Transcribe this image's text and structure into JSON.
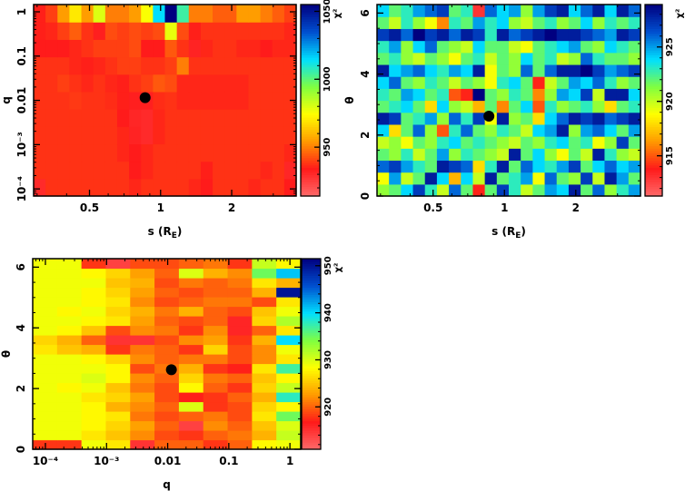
{
  "colormap": [
    "#ff6a6a",
    "#ff1a1a",
    "#ff9900",
    "#ffff00",
    "#80ff40",
    "#00e0ff",
    "#0050d0",
    "#000080"
  ],
  "marker_color": "#000000",
  "chart_data": [
    {
      "type": "heatmap",
      "xlabel": {
        "text": "s (R",
        "sub": "E",
        "suffix": ")"
      },
      "ylabel": {
        "text": "q"
      },
      "xscale": "log",
      "yscale": "log",
      "xlim": [
        0.29,
        3.75
      ],
      "ylim": [
        6.9e-05,
        1.46
      ],
      "xticks": [
        {
          "value": 0.5,
          "label": "0.5"
        },
        {
          "value": 1,
          "label": "1"
        },
        {
          "value": 2,
          "label": "2"
        }
      ],
      "yticks": [
        {
          "value": 0.0001,
          "label": "10⁻⁴"
        },
        {
          "value": 0.001,
          "label": "10⁻³"
        },
        {
          "value": 0.01,
          "label": "0.01"
        },
        {
          "value": 0.1,
          "label": "0.1"
        },
        {
          "value": 1,
          "label": "1"
        }
      ],
      "colorbar": {
        "label": "χ²",
        "range": [
          914,
          1055
        ],
        "ticks": [
          {
            "value": 950,
            "label": "950"
          },
          {
            "value": 1000,
            "label": "1000"
          },
          {
            "value": 1050,
            "label": "1050"
          }
        ]
      },
      "best_fit": {
        "s": 0.86,
        "q": 0.0115
      },
      "values_bottom_to_top": [
        [
          930,
          938,
          938,
          938,
          938,
          938,
          938,
          938,
          936,
          938,
          938,
          938,
          938,
          936,
          934,
          938,
          938,
          938,
          936,
          938,
          938,
          934
        ],
        [
          938,
          938,
          938,
          938,
          938,
          938,
          938,
          938,
          934,
          936,
          938,
          938,
          938,
          938,
          935,
          938,
          938,
          938,
          938,
          936,
          938,
          931
        ],
        [
          938,
          938,
          938,
          938,
          938,
          938,
          938,
          936,
          934,
          936,
          938,
          938,
          938,
          938,
          938,
          938,
          938,
          938,
          938,
          938,
          938,
          936
        ],
        [
          938,
          938,
          938,
          938,
          938,
          938,
          938,
          936,
          932,
          930,
          936,
          938,
          938,
          938,
          938,
          938,
          938,
          938,
          938,
          938,
          938,
          938
        ],
        [
          938,
          938,
          938,
          938,
          938,
          938,
          938,
          934,
          931,
          930,
          936,
          938,
          938,
          938,
          938,
          938,
          938,
          938,
          938,
          938,
          938,
          938
        ],
        [
          938,
          938,
          938,
          939,
          938,
          938,
          937,
          935,
          933,
          933,
          937,
          938,
          936,
          936,
          936,
          936,
          936,
          936,
          938,
          938,
          938,
          938
        ],
        [
          938,
          938,
          940,
          938,
          936,
          938,
          936,
          935,
          938,
          940,
          944,
          942,
          936,
          936,
          936,
          936,
          936,
          936,
          938,
          938,
          938,
          938
        ],
        [
          938,
          938,
          938,
          936,
          935,
          936,
          938,
          940,
          940,
          938,
          938,
          940,
          950,
          938,
          938,
          938,
          938,
          938,
          938,
          938,
          938,
          938
        ],
        [
          934,
          934,
          934,
          936,
          938,
          940,
          940,
          940,
          942,
          934,
          934,
          944,
          938,
          932,
          936,
          938,
          938,
          936,
          936,
          934,
          936,
          936
        ],
        [
          935,
          936,
          940,
          945,
          938,
          933,
          942,
          940,
          942,
          940,
          942,
          978,
          942,
          935,
          938,
          938,
          938,
          938,
          938,
          938,
          938,
          936
        ],
        [
          935,
          940,
          955,
          970,
          955,
          980,
          950,
          950,
          955,
          975,
          1015,
          1055,
          1005,
          950,
          950,
          945,
          945,
          955,
          955,
          950,
          945,
          940
        ]
      ]
    },
    {
      "type": "heatmap",
      "xlabel": {
        "text": "s (R",
        "sub": "E",
        "suffix": ")"
      },
      "ylabel": {
        "text": "θ"
      },
      "xscale": "log",
      "yscale": "linear",
      "xlim": [
        0.29,
        3.75
      ],
      "ylim": [
        0,
        6.28
      ],
      "xticks": [
        {
          "value": 0.5,
          "label": "0.5"
        },
        {
          "value": 1,
          "label": "1"
        },
        {
          "value": 2,
          "label": "2"
        }
      ],
      "yticks": [
        {
          "value": 0,
          "label": "0"
        },
        {
          "value": 2,
          "label": "2"
        },
        {
          "value": 4,
          "label": "4"
        },
        {
          "value": 6,
          "label": "6"
        }
      ],
      "colorbar": {
        "label": "χ²",
        "range": [
          911.3,
          928.9
        ],
        "ticks": [
          {
            "value": 915,
            "label": "915"
          },
          {
            "value": 920,
            "label": "920"
          },
          {
            "value": 925,
            "label": "925"
          }
        ]
      },
      "best_fit": {
        "s": 0.86,
        "theta": 2.62
      },
      "values_bottom_to_top": [
        [
          921,
          922,
          924,
          927,
          923,
          920,
          926,
          922,
          914,
          922,
          927,
          923,
          920,
          922,
          925,
          924,
          928,
          922,
          926,
          921,
          923,
          925
        ],
        [
          919,
          925,
          920,
          922,
          928,
          924,
          917,
          924,
          920,
          928,
          922,
          923,
          925,
          919,
          926,
          922,
          921,
          927,
          920,
          928,
          925,
          922
        ],
        [
          926,
          927,
          925,
          923,
          922,
          928,
          927,
          926,
          918,
          923,
          928,
          922,
          926,
          924,
          923,
          925,
          927,
          922,
          924,
          926,
          924,
          925
        ],
        [
          922,
          921,
          923,
          920,
          922,
          925,
          921,
          923,
          922,
          921,
          920,
          928,
          922,
          924,
          921,
          919,
          922,
          920,
          928,
          923,
          921,
          920
        ],
        [
          920,
          921,
          919,
          922,
          921,
          923,
          924,
          922,
          923,
          922,
          921,
          920,
          922,
          921,
          923,
          924,
          922,
          923,
          919,
          921,
          927,
          922
        ],
        [
          924,
          918,
          922,
          926,
          921,
          915,
          923,
          926,
          922,
          921,
          923,
          922,
          920,
          924,
          925,
          928,
          921,
          925,
          926,
          924,
          922,
          925
        ],
        [
          928,
          927,
          922,
          923,
          925,
          921,
          926,
          923,
          927,
          919,
          928,
          921,
          922,
          918,
          924,
          926,
          928,
          927,
          928,
          926,
          927,
          928
        ],
        [
          922,
          923,
          924,
          922,
          918,
          924,
          921,
          920,
          917,
          922,
          916,
          922,
          924,
          915,
          923,
          921,
          922,
          923,
          921,
          918,
          922,
          923
        ],
        [
          923,
          922,
          925,
          924,
          922,
          923,
          915,
          914,
          929,
          922,
          921,
          923,
          922,
          916,
          921,
          925,
          924,
          927,
          920,
          928,
          928,
          924
        ],
        [
          924,
          926,
          922,
          921,
          923,
          922,
          920,
          922,
          921,
          919,
          923,
          924,
          922,
          914,
          920,
          922,
          925,
          924,
          926,
          923,
          921,
          922
        ],
        [
          928,
          924,
          925,
          926,
          924,
          923,
          925,
          924,
          928,
          919,
          922,
          921,
          926,
          922,
          926,
          928,
          928,
          929,
          927,
          925,
          926,
          927
        ],
        [
          922,
          923,
          921,
          920,
          922,
          921,
          919,
          922,
          923,
          920,
          922,
          921,
          924,
          922,
          923,
          920,
          921,
          926,
          923,
          922,
          922,
          921
        ],
        [
          923,
          925,
          921,
          924,
          926,
          922,
          921,
          920,
          924,
          922,
          922,
          920,
          919,
          922,
          923,
          924,
          925,
          922,
          921,
          924,
          923,
          922
        ],
        [
          927,
          928,
          926,
          929,
          927,
          928,
          926,
          928,
          927,
          923,
          928,
          926,
          927,
          928,
          929,
          928,
          928,
          927,
          926,
          925,
          928,
          927
        ],
        [
          922,
          920,
          923,
          921,
          919,
          916,
          923,
          922,
          925,
          923,
          924,
          921,
          920,
          922,
          923,
          921,
          922,
          924,
          921,
          923,
          922,
          923
        ],
        [
          924,
          922,
          923,
          925,
          926,
          927,
          922,
          923,
          913,
          926,
          924,
          925,
          921,
          925,
          927,
          928,
          924,
          926,
          928,
          924,
          928,
          926
        ]
      ]
    },
    {
      "type": "heatmap",
      "xlabel": {
        "text": "q",
        "sub": "",
        "suffix": ""
      },
      "ylabel": {
        "text": "θ"
      },
      "xscale": "log",
      "yscale": "linear",
      "xlim": [
        6.2e-05,
        1.5
      ],
      "ylim": [
        0,
        6.28
      ],
      "xticks": [
        {
          "value": 0.0001,
          "label": "10⁻⁴"
        },
        {
          "value": 0.001,
          "label": "10⁻³"
        },
        {
          "value": 0.01,
          "label": "0.01"
        },
        {
          "value": 0.1,
          "label": "0.1"
        },
        {
          "value": 1,
          "label": "1"
        }
      ],
      "yticks": [
        {
          "value": 0,
          "label": "0"
        },
        {
          "value": 2,
          "label": "2"
        },
        {
          "value": 4,
          "label": "4"
        },
        {
          "value": 6,
          "label": "6"
        }
      ],
      "colorbar": {
        "label": "χ²",
        "range": [
          911,
          951.5
        ],
        "ticks": [
          {
            "value": 920,
            "label": "920"
          },
          {
            "value": 930,
            "label": "930"
          },
          {
            "value": 940,
            "label": "940"
          },
          {
            "value": 950,
            "label": "950"
          }
        ]
      },
      "best_fit": {
        "q": 0.0115,
        "theta": 2.62
      },
      "values_bottom_to_top": [
        [
          918,
          918,
          929,
          927,
          915,
          920,
          920,
          918,
          920,
          928,
          929
        ],
        [
          929,
          929,
          927,
          925,
          922,
          919,
          918,
          920,
          921,
          924,
          931
        ],
        [
          929,
          929,
          928,
          926,
          923,
          920,
          914,
          922,
          920,
          925,
          930
        ],
        [
          929,
          929,
          928,
          927,
          921,
          919,
          920,
          921,
          919,
          927,
          935
        ],
        [
          929,
          929,
          928,
          924,
          922,
          920,
          930,
          918,
          919,
          926,
          928
        ],
        [
          929,
          929,
          927,
          926,
          923,
          919,
          917,
          918,
          920,
          924,
          938
        ],
        [
          929,
          928,
          929,
          925,
          921,
          919,
          928,
          920,
          918,
          926,
          931
        ],
        [
          929,
          929,
          930,
          928,
          922,
          920,
          926,
          921,
          920,
          925,
          928
        ],
        [
          929,
          929,
          929,
          928,
          919,
          921,
          924,
          918,
          917,
          927,
          937
        ],
        [
          929,
          929,
          928,
          926,
          922,
          920,
          921,
          921,
          919,
          922,
          927
        ],
        [
          927,
          925,
          924,
          918,
          921,
          920,
          918,
          926,
          919,
          922,
          929
        ],
        [
          926,
          924,
          920,
          915,
          915,
          919,
          922,
          923,
          918,
          924,
          940
        ],
        [
          929,
          928,
          925,
          919,
          922,
          921,
          918,
          922,
          916,
          920,
          927
        ],
        [
          929,
          929,
          928,
          927,
          923,
          920,
          919,
          920,
          916,
          926,
          932
        ],
        [
          929,
          928,
          929,
          926,
          924,
          921,
          924,
          920,
          919,
          925,
          929
        ],
        [
          929,
          929,
          928,
          927,
          922,
          919,
          920,
          921,
          921,
          919,
          927
        ],
        [
          929,
          929,
          928,
          926,
          923,
          920,
          919,
          920,
          920,
          924,
          950
        ],
        [
          929,
          929,
          929,
          925,
          924,
          919,
          921,
          920,
          921,
          927,
          924
        ],
        [
          929,
          929,
          928,
          926,
          923,
          920,
          930,
          924,
          922,
          935,
          941
        ],
        [
          929,
          929,
          918,
          914,
          919,
          919,
          920,
          921,
          918,
          931,
          928
        ]
      ]
    }
  ]
}
